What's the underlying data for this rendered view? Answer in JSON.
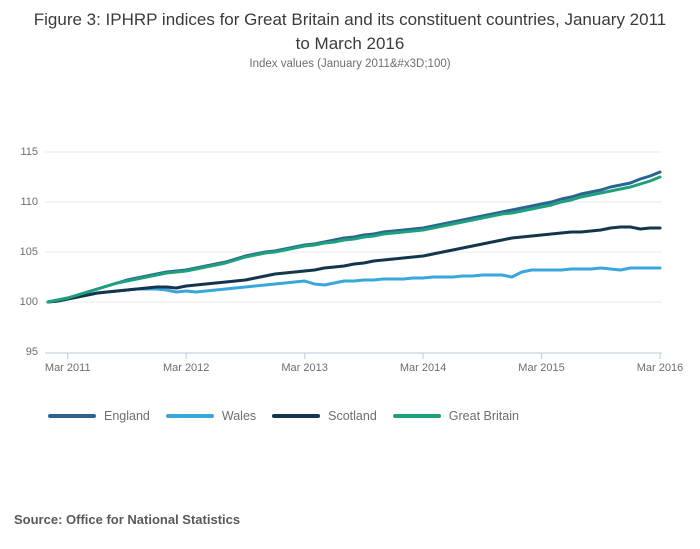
{
  "header": {
    "title": "Figure 3: IPHRP indices for Great Britain and its constituent countries, January 2011 to March 2016",
    "subtitle": "Index values (January 2011&#x3D;100)"
  },
  "footer": {
    "source": "Source: Office for National Statistics"
  },
  "chart_data": {
    "type": "line",
    "title": "Figure 3: IPHRP indices for Great Britain and its constituent countries, January 2011 to March 2016",
    "subtitle": "Index values (January 2011&#x3D;100)",
    "x_start_month": "Jan 2011",
    "x_end_month": "Mar 2016",
    "x_months": 63,
    "x_tick_labels": [
      "Mar 2011",
      "Mar 2012",
      "Mar 2013",
      "Mar 2014",
      "Mar 2015",
      "Mar 2016"
    ],
    "x_tick_month_index": [
      2,
      14,
      26,
      38,
      50,
      62
    ],
    "y_tick_labels": [
      "95",
      "100",
      "105",
      "110",
      "115"
    ],
    "y_ticks": [
      95,
      100,
      105,
      110,
      115
    ],
    "ylim": [
      95,
      116
    ],
    "grid": "horizontal",
    "legend_position": "bottom",
    "colors": {
      "grid": "#e8e8e8",
      "axis": "#c3d3e1",
      "tick_text": "#6e6e6e"
    },
    "series": [
      {
        "name": "England",
        "color": "#2a6591",
        "values": [
          100.0,
          100.2,
          100.4,
          100.7,
          101.0,
          101.3,
          101.6,
          101.9,
          102.2,
          102.4,
          102.6,
          102.8,
          103.0,
          103.1,
          103.2,
          103.4,
          103.6,
          103.8,
          104.0,
          104.3,
          104.6,
          104.8,
          105.0,
          105.1,
          105.3,
          105.5,
          105.7,
          105.8,
          106.0,
          106.2,
          106.4,
          106.5,
          106.7,
          106.8,
          107.0,
          107.1,
          107.2,
          107.3,
          107.4,
          107.6,
          107.8,
          108.0,
          108.2,
          108.4,
          108.6,
          108.8,
          109.0,
          109.2,
          109.4,
          109.6,
          109.8,
          110.0,
          110.3,
          110.5,
          110.8,
          111.0,
          111.2,
          111.5,
          111.7,
          111.9,
          112.3,
          112.6,
          113.0
        ]
      },
      {
        "name": "Wales",
        "color": "#37a7dc",
        "values": [
          100.0,
          100.1,
          100.3,
          100.5,
          100.7,
          100.9,
          101.0,
          101.1,
          101.2,
          101.3,
          101.3,
          101.3,
          101.2,
          101.0,
          101.1,
          101.0,
          101.1,
          101.2,
          101.3,
          101.4,
          101.5,
          101.6,
          101.7,
          101.8,
          101.9,
          102.0,
          102.1,
          101.8,
          101.7,
          101.9,
          102.1,
          102.1,
          102.2,
          102.2,
          102.3,
          102.3,
          102.3,
          102.4,
          102.4,
          102.5,
          102.5,
          102.5,
          102.6,
          102.6,
          102.7,
          102.7,
          102.7,
          102.5,
          103.0,
          103.2,
          103.2,
          103.2,
          103.2,
          103.3,
          103.3,
          103.3,
          103.4,
          103.3,
          103.2,
          103.4,
          103.4,
          103.4,
          103.4
        ]
      },
      {
        "name": "Scotland",
        "color": "#13364d",
        "values": [
          100.0,
          100.1,
          100.3,
          100.5,
          100.7,
          100.9,
          101.0,
          101.1,
          101.2,
          101.3,
          101.4,
          101.5,
          101.5,
          101.4,
          101.6,
          101.7,
          101.8,
          101.9,
          102.0,
          102.1,
          102.2,
          102.4,
          102.6,
          102.8,
          102.9,
          103.0,
          103.1,
          103.2,
          103.4,
          103.5,
          103.6,
          103.8,
          103.9,
          104.1,
          104.2,
          104.3,
          104.4,
          104.5,
          104.6,
          104.8,
          105.0,
          105.2,
          105.4,
          105.6,
          105.8,
          106.0,
          106.2,
          106.4,
          106.5,
          106.6,
          106.7,
          106.8,
          106.9,
          107.0,
          107.0,
          107.1,
          107.2,
          107.4,
          107.5,
          107.5,
          107.3,
          107.4,
          107.4
        ]
      },
      {
        "name": "Great Britain",
        "color": "#1fa07d",
        "values": [
          100.0,
          100.2,
          100.4,
          100.7,
          101.0,
          101.3,
          101.6,
          101.9,
          102.1,
          102.3,
          102.5,
          102.7,
          102.9,
          103.0,
          103.1,
          103.3,
          103.5,
          103.7,
          103.9,
          104.2,
          104.5,
          104.7,
          104.9,
          105.0,
          105.2,
          105.4,
          105.6,
          105.7,
          105.9,
          106.0,
          106.2,
          106.3,
          106.5,
          106.6,
          106.8,
          106.9,
          107.0,
          107.1,
          107.2,
          107.4,
          107.6,
          107.8,
          108.0,
          108.2,
          108.4,
          108.6,
          108.8,
          108.9,
          109.1,
          109.3,
          109.5,
          109.7,
          110.0,
          110.2,
          110.5,
          110.7,
          110.9,
          111.1,
          111.3,
          111.5,
          111.8,
          112.1,
          112.5
        ]
      }
    ]
  }
}
